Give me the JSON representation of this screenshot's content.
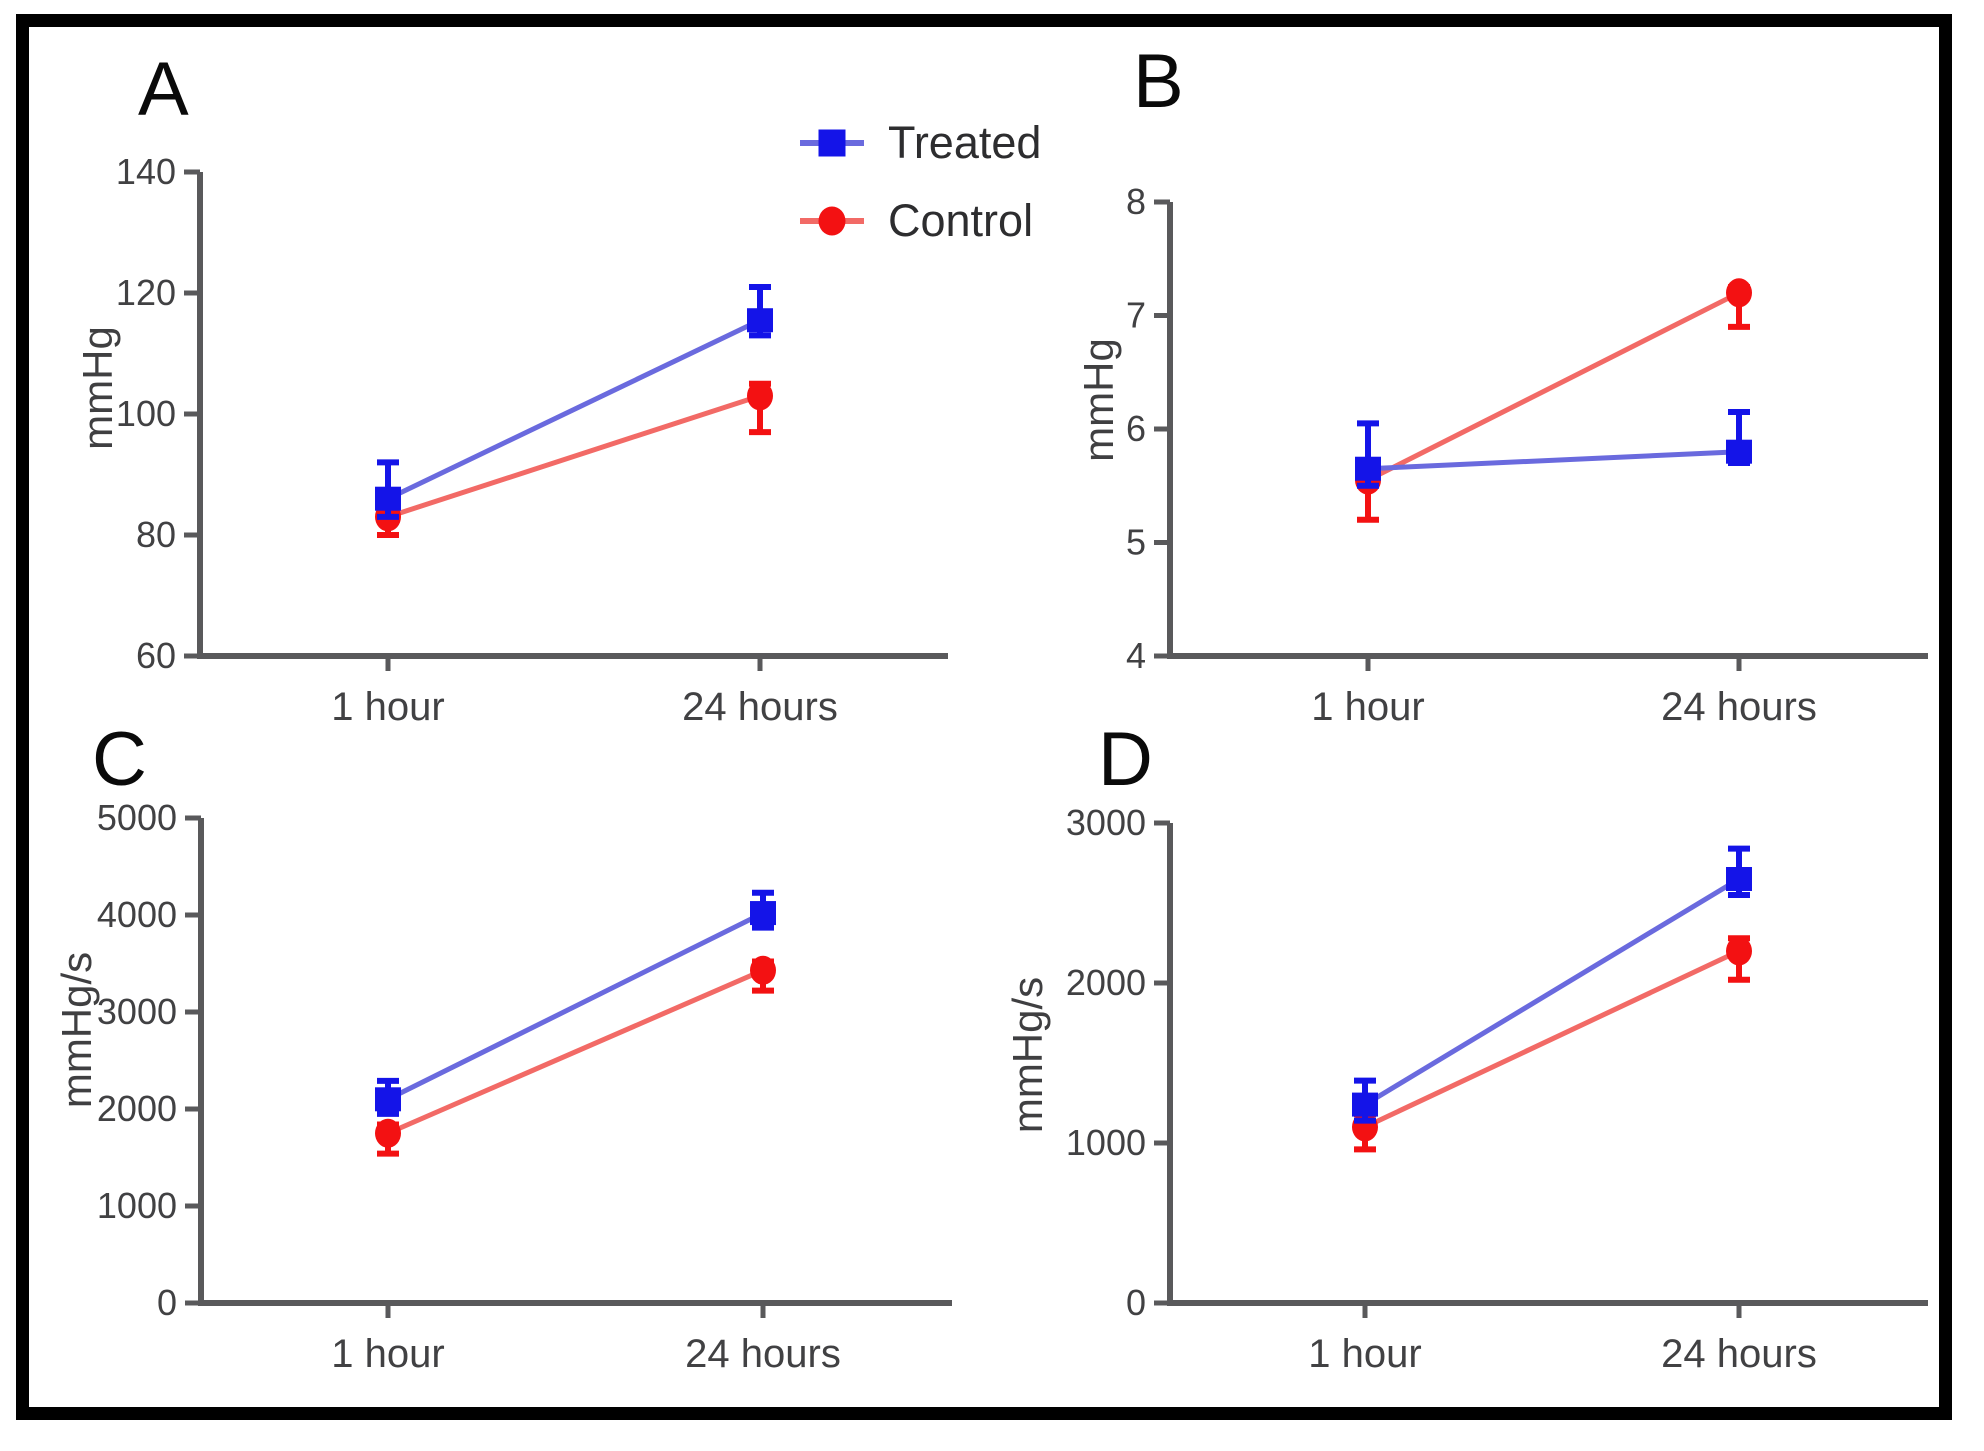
{
  "figure": {
    "background": "#ffffff",
    "border_color": "#000000",
    "axis_color": "#59595b",
    "tick_label_color": "#414143",
    "legend": {
      "items": [
        {
          "label": "Treated",
          "marker": "square",
          "color": "#1414e8",
          "line_color": "#6a6ade"
        },
        {
          "label": "Control",
          "marker": "circle",
          "color": "#f31112",
          "line_color": "#f26a66"
        }
      ]
    }
  },
  "chart_data": [
    {
      "id": "A",
      "type": "line",
      "title": "A",
      "ylabel": "mmHg",
      "ylim": [
        60,
        140
      ],
      "yticks": [
        140,
        120,
        100,
        80,
        60
      ],
      "categories": [
        "1 hour",
        "24 hours"
      ],
      "series": [
        {
          "name": "Treated",
          "marker": "square",
          "color": "#1414e8",
          "line_color": "#6a6ade",
          "values": [
            86,
            115.5
          ],
          "err_low": [
            83,
            113
          ],
          "err_high": [
            92,
            121
          ]
        },
        {
          "name": "Control",
          "marker": "circle",
          "color": "#f31112",
          "line_color": "#f26a66",
          "values": [
            83,
            103
          ],
          "err_low": [
            80,
            97
          ],
          "err_high": [
            85,
            105
          ]
        }
      ]
    },
    {
      "id": "B",
      "type": "line",
      "title": "B",
      "ylabel": "mmHg",
      "ylim": [
        4,
        8
      ],
      "yticks": [
        8,
        7,
        6,
        5,
        4
      ],
      "categories": [
        "1 hour",
        "24 hours"
      ],
      "series": [
        {
          "name": "Treated",
          "marker": "square",
          "color": "#1414e8",
          "line_color": "#6a6ade",
          "values": [
            5.65,
            5.8
          ],
          "err_low": [
            5.5,
            5.7
          ],
          "err_high": [
            6.05,
            6.15
          ]
        },
        {
          "name": "Control",
          "marker": "circle",
          "color": "#f31112",
          "line_color": "#f26a66",
          "values": [
            5.55,
            7.2
          ],
          "err_low": [
            5.2,
            6.9
          ],
          "err_high": [
            5.65,
            7.25
          ]
        }
      ]
    },
    {
      "id": "C",
      "type": "line",
      "title": "C",
      "ylabel": "mmHg/s",
      "ylim": [
        0,
        5000
      ],
      "yticks": [
        5000,
        4000,
        3000,
        2000,
        1000,
        0
      ],
      "categories": [
        "1 hour",
        "24 hours"
      ],
      "series": [
        {
          "name": "Treated",
          "marker": "square",
          "color": "#1414e8",
          "line_color": "#6a6ade",
          "values": [
            2100,
            4020
          ],
          "err_low": [
            1950,
            3870
          ],
          "err_high": [
            2290,
            4230
          ]
        },
        {
          "name": "Control",
          "marker": "circle",
          "color": "#f31112",
          "line_color": "#f26a66",
          "values": [
            1750,
            3430
          ],
          "err_low": [
            1540,
            3220
          ],
          "err_high": [
            1840,
            3520
          ]
        }
      ]
    },
    {
      "id": "D",
      "type": "line",
      "title": "D",
      "ylabel": "mmHg/s",
      "ylim": [
        0,
        3000
      ],
      "yticks": [
        3000,
        2000,
        1000,
        0
      ],
      "categories": [
        "1 hour",
        "24 hours"
      ],
      "series": [
        {
          "name": "Treated",
          "marker": "square",
          "color": "#1414e8",
          "line_color": "#6a6ade",
          "values": [
            1240,
            2650
          ],
          "err_low": [
            1140,
            2550
          ],
          "err_high": [
            1390,
            2840
          ]
        },
        {
          "name": "Control",
          "marker": "circle",
          "color": "#f31112",
          "line_color": "#f26a66",
          "values": [
            1100,
            2200
          ],
          "err_low": [
            960,
            2020
          ],
          "err_high": [
            1180,
            2280
          ]
        }
      ]
    }
  ]
}
